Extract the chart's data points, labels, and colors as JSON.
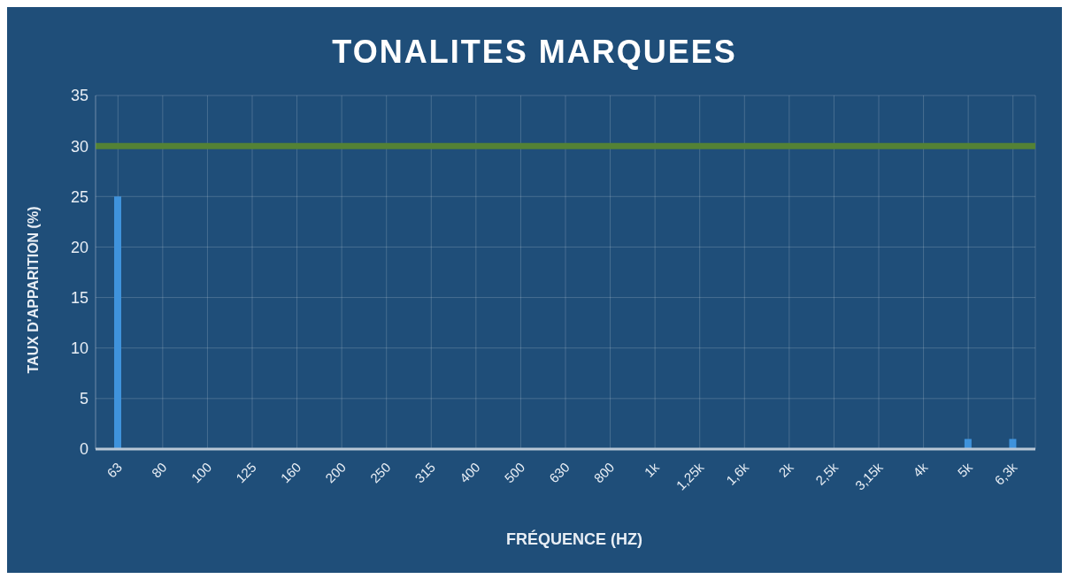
{
  "chart_data": {
    "type": "bar",
    "title": "TONALITES MARQUEES",
    "xlabel": "FRÉQUENCE (HZ)",
    "ylabel": "TAUX D'APPARITION (%)",
    "categories": [
      "63",
      "80",
      "100",
      "125",
      "160",
      "200",
      "250",
      "315",
      "400",
      "500",
      "630",
      "800",
      "1k",
      "1,25k",
      "1,6k",
      "2k",
      "2,5k",
      "3,15k",
      "4k",
      "5k",
      "6,3k"
    ],
    "values": [
      25,
      0,
      0,
      0,
      0,
      0,
      0,
      0,
      0,
      0,
      0,
      0,
      0,
      0,
      0,
      0,
      0,
      0,
      0,
      1,
      1
    ],
    "color": "#3f93dc",
    "ylim": [
      0,
      35
    ],
    "yticks": [
      0,
      5,
      10,
      15,
      20,
      25,
      30,
      35
    ],
    "grid": true,
    "ref_lines": [
      {
        "axis": "y",
        "value": 30,
        "color": "#548235"
      }
    ]
  }
}
